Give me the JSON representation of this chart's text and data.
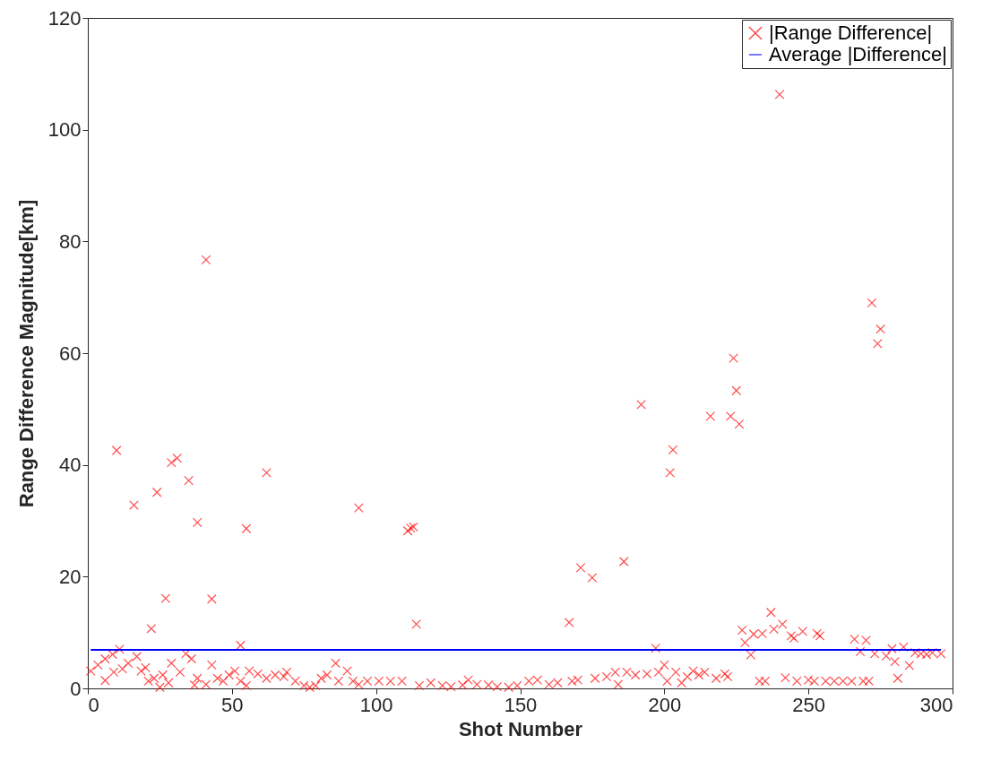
{
  "chart_data": {
    "type": "scatter",
    "xlabel": "Shot Number",
    "ylabel": "Range Difference Magnitude[km]",
    "xlim": [
      0,
      300
    ],
    "xticks": [
      0,
      50,
      100,
      150,
      200,
      250,
      300
    ],
    "ylim": [
      0,
      120
    ],
    "yticks": [
      0,
      20,
      40,
      60,
      80,
      100,
      120
    ],
    "grid": false,
    "legend": "top right",
    "series": [
      {
        "name": "|Range Difference|",
        "marker": "cross",
        "color": "#ff0000",
        "x": [
          1,
          3.5,
          6,
          6,
          8.6,
          9,
          10,
          11,
          12,
          14,
          16,
          17,
          18.5,
          20,
          21,
          22,
          23,
          24,
          25,
          26,
          27,
          28,
          29,
          29,
          31,
          32,
          34,
          35,
          36,
          37,
          38,
          38,
          41,
          41,
          43,
          43,
          45,
          47,
          49,
          51,
          53,
          53,
          55,
          55,
          56,
          59,
          62,
          62,
          65,
          68,
          69,
          72,
          75,
          77,
          79,
          81,
          83,
          86,
          87,
          90,
          92,
          94,
          94,
          97,
          101,
          105,
          109,
          111,
          112,
          113,
          114,
          115,
          119,
          123,
          126,
          130,
          132,
          135,
          139,
          142,
          146,
          149,
          153,
          156,
          160,
          163,
          167,
          168,
          170,
          171,
          175,
          176,
          180,
          183,
          184,
          186,
          187,
          190,
          192,
          194,
          197,
          198,
          200,
          201,
          202,
          203,
          204,
          206,
          208,
          210,
          212,
          214,
          216,
          218,
          221,
          222,
          223,
          224,
          225,
          226,
          227,
          228,
          230,
          231,
          233,
          234,
          235,
          237,
          238,
          240,
          241,
          242,
          244,
          245,
          246,
          248,
          250,
          252,
          253,
          254,
          256,
          259,
          262,
          265,
          266,
          268,
          269,
          270,
          271,
          272,
          273,
          274,
          275,
          277,
          279,
          280,
          281,
          283,
          285,
          287,
          289,
          291,
          293,
          296
        ],
        "values": [
          3.1,
          4.2,
          5.3,
          1.4,
          6.1,
          2.9,
          42.6,
          7.0,
          3.5,
          4.5,
          32.8,
          5.7,
          3.1,
          3.7,
          1.3,
          10.7,
          1.8,
          35.1,
          0.2,
          2.4,
          16.1,
          1.0,
          40.4,
          4.5,
          41.2,
          2.9,
          6.2,
          37.2,
          5.3,
          0.6,
          29.7,
          1.8,
          76.7,
          0.7,
          16.0,
          4.2,
          1.8,
          1.3,
          2.4,
          3.1,
          7.7,
          1.3,
          28.6,
          0.5,
          3.1,
          2.6,
          38.6,
          1.8,
          2.4,
          2.1,
          2.9,
          1.3,
          0.5,
          0.2,
          0.5,
          1.8,
          2.4,
          4.5,
          1.3,
          3.1,
          1.3,
          32.3,
          0.7,
          1.3,
          1.3,
          1.3,
          1.3,
          28.2,
          28.7,
          28.9,
          11.5,
          0.5,
          1.0,
          0.5,
          0.3,
          0.6,
          1.5,
          0.7,
          0.6,
          0.3,
          0.2,
          0.5,
          1.3,
          1.5,
          0.7,
          1.0,
          11.8,
          1.3,
          1.5,
          21.6,
          19.8,
          1.8,
          2.1,
          2.9,
          0.7,
          22.7,
          2.9,
          2.4,
          50.8,
          2.6,
          7.2,
          2.9,
          4.2,
          1.3,
          38.6,
          42.7,
          2.9,
          1.0,
          2.1,
          3.1,
          2.4,
          2.9,
          48.7,
          1.8,
          2.6,
          2.1,
          48.7,
          59.1,
          53.3,
          47.3,
          10.4,
          8.2,
          6.0,
          9.7,
          1.3,
          9.8,
          1.3,
          13.6,
          10.6,
          106.3,
          11.5,
          1.9,
          9.4,
          9.0,
          1.3,
          10.2,
          1.5,
          1.3,
          9.8,
          9.4,
          1.3,
          1.3,
          1.3,
          1.3,
          8.8,
          6.6,
          1.3,
          8.6,
          1.3,
          69.0,
          6.2,
          61.7,
          64.3,
          5.8,
          7.1,
          4.8,
          1.8,
          7.4,
          4.1,
          6.4,
          6.2,
          6.1,
          6.4,
          6.2
        ]
      },
      {
        "name": "Average |Difference|",
        "type": "line",
        "marker": "none",
        "color": "#0000ff",
        "x": [
          1,
          296
        ],
        "values": [
          6.9,
          6.9
        ]
      }
    ]
  }
}
